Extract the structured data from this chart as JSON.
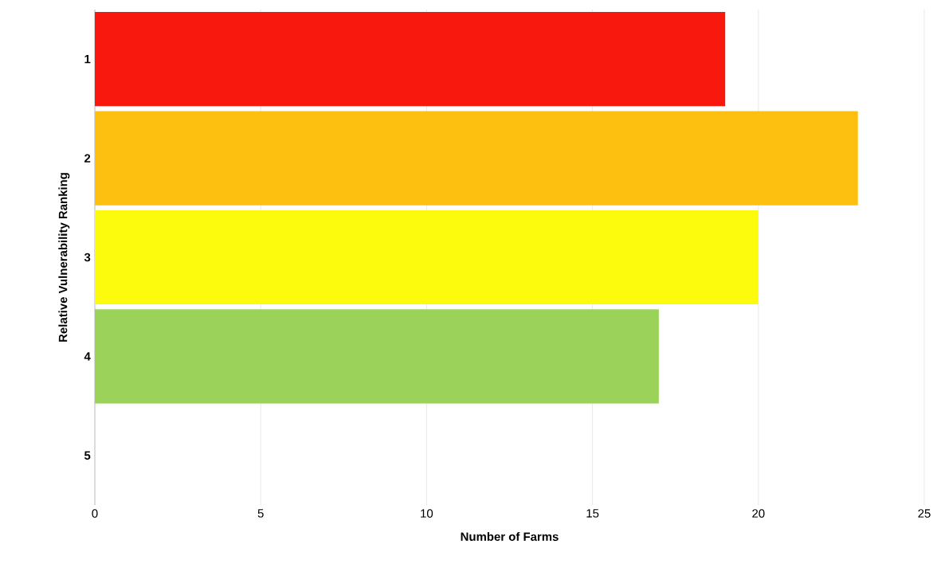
{
  "chart_data": {
    "type": "bar",
    "orientation": "horizontal",
    "xlabel": "Number of Farms",
    "ylabel": "Relative Vulnerability Ranking",
    "categories": [
      "1",
      "2",
      "3",
      "4",
      "5"
    ],
    "values": [
      19,
      23,
      20,
      17,
      0
    ],
    "colors": [
      "#f8180e",
      "#fdc010",
      "#fcfb0d",
      "#9bd35a",
      "#9bd35a"
    ],
    "xlim": [
      0,
      25
    ],
    "xticks": [
      0,
      5,
      10,
      15,
      20,
      25
    ],
    "grid": "x"
  }
}
